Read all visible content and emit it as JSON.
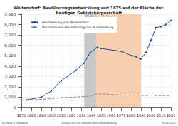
{
  "chart_data": {
    "type": "line",
    "title": "Woltersdorf: Bevölkerungsentwicklung seit 1875 auf der Fläche der heutigen Gebietskörperschaft",
    "x": [
      1875,
      1890,
      1900,
      1910,
      1925,
      1933,
      1939,
      1946,
      1950,
      1964,
      1971,
      1981,
      1985,
      1989,
      1990,
      1995,
      2000,
      2005,
      2010,
      2015,
      2020
    ],
    "series": [
      {
        "name": "Bevölkerung von Woltersdorf",
        "color": "#1f4e9c",
        "marker": "square",
        "line_style": "solid",
        "values": [
          728,
          1000,
          1600,
          2600,
          3600,
          4300,
          5300,
          5800,
          5700,
          5500,
          5400,
          5000,
          4900,
          4700,
          4700,
          5300,
          6500,
          7700,
          7800,
          8000,
          8400
        ]
      },
      {
        "name": "Normalisierte Bevölkerung von Brandenburg",
        "color": "#888888",
        "marker": "none",
        "line_style": "dashed",
        "values": [
          728,
          790,
          860,
          960,
          1020,
          1060,
          1100,
          1300,
          1320,
          1230,
          1210,
          1200,
          1200,
          1190,
          1170,
          1150,
          1200,
          1170,
          1140,
          1150,
          1170
        ]
      }
    ],
    "xlim": [
      1870,
      2020
    ],
    "xticks": [
      1870,
      1880,
      1890,
      1900,
      1910,
      1920,
      1930,
      1940,
      1950,
      1960,
      1970,
      1980,
      1990,
      2000,
      2010,
      2020
    ],
    "ylim": [
      0,
      9000
    ],
    "yticks": [
      0,
      {
        "value": 1000,
        "label": "1,000"
      },
      {
        "value": 2000,
        "label": "2,000"
      },
      {
        "value": 3000,
        "label": "3,000"
      },
      {
        "value": 4000,
        "label": "4,000"
      },
      {
        "value": 5000,
        "label": "5,000"
      },
      {
        "value": 6000,
        "label": "6,000"
      },
      {
        "value": 7000,
        "label": "7,000"
      },
      {
        "value": 8000,
        "label": "8,000"
      },
      {
        "value": 9000,
        "label": "9,000"
      }
    ],
    "shaded_periods": [
      {
        "from": 1933,
        "to": 1945,
        "color": "#c8c8c8"
      },
      {
        "from": 1945,
        "to": 1990,
        "color": "#f7cfae"
      }
    ],
    "grid": true,
    "legend": "upper left",
    "footer": {
      "author": "by Hans G. Oberlack",
      "source": "Quelle: Amt für Statistik Berlin-Brandenburg",
      "date": "30.08.2021"
    }
  }
}
